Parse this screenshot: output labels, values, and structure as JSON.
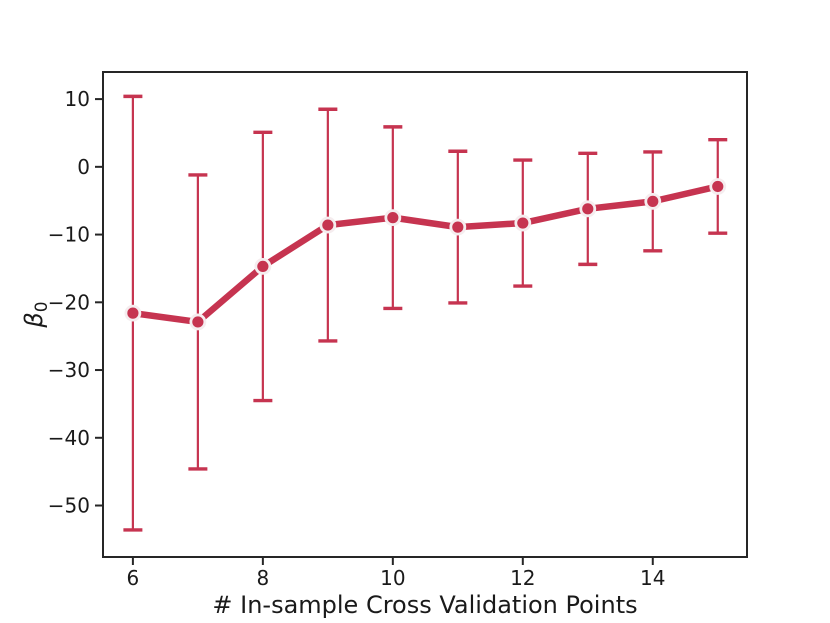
{
  "figure": {
    "kind": "matplotlib-errorbar-plot",
    "background": "#ffffff"
  },
  "chart_data": {
    "type": "line",
    "title": "",
    "xlabel": "# In-sample Cross Validation Points",
    "ylabel": {
      "text": "β",
      "subscript": "0"
    },
    "x": [
      6,
      7,
      8,
      9,
      10,
      11,
      12,
      13,
      14,
      15
    ],
    "y": [
      -21.6,
      -22.9,
      -14.7,
      -8.6,
      -7.5,
      -8.9,
      -8.3,
      -6.2,
      -5.1,
      -2.9
    ],
    "yerr": [
      32.0,
      21.7,
      19.8,
      17.1,
      13.4,
      11.2,
      9.3,
      8.2,
      7.3,
      6.9
    ],
    "xticks": [
      6,
      8,
      10,
      12,
      14
    ],
    "yticks": [
      10,
      0,
      -10,
      -20,
      -30,
      -40,
      -50
    ],
    "xlim": [
      5.54,
      15.45
    ],
    "ylim": [
      -57.6,
      14.0
    ],
    "grid": false,
    "legend": null,
    "line_color": "#c63450",
    "marker_face_color": "#c63450",
    "marker_edge_color": "#f5edef",
    "errorbar_color": "#c63450",
    "axis_color": "#262626",
    "tick_label_color": "#1a1a1a"
  }
}
